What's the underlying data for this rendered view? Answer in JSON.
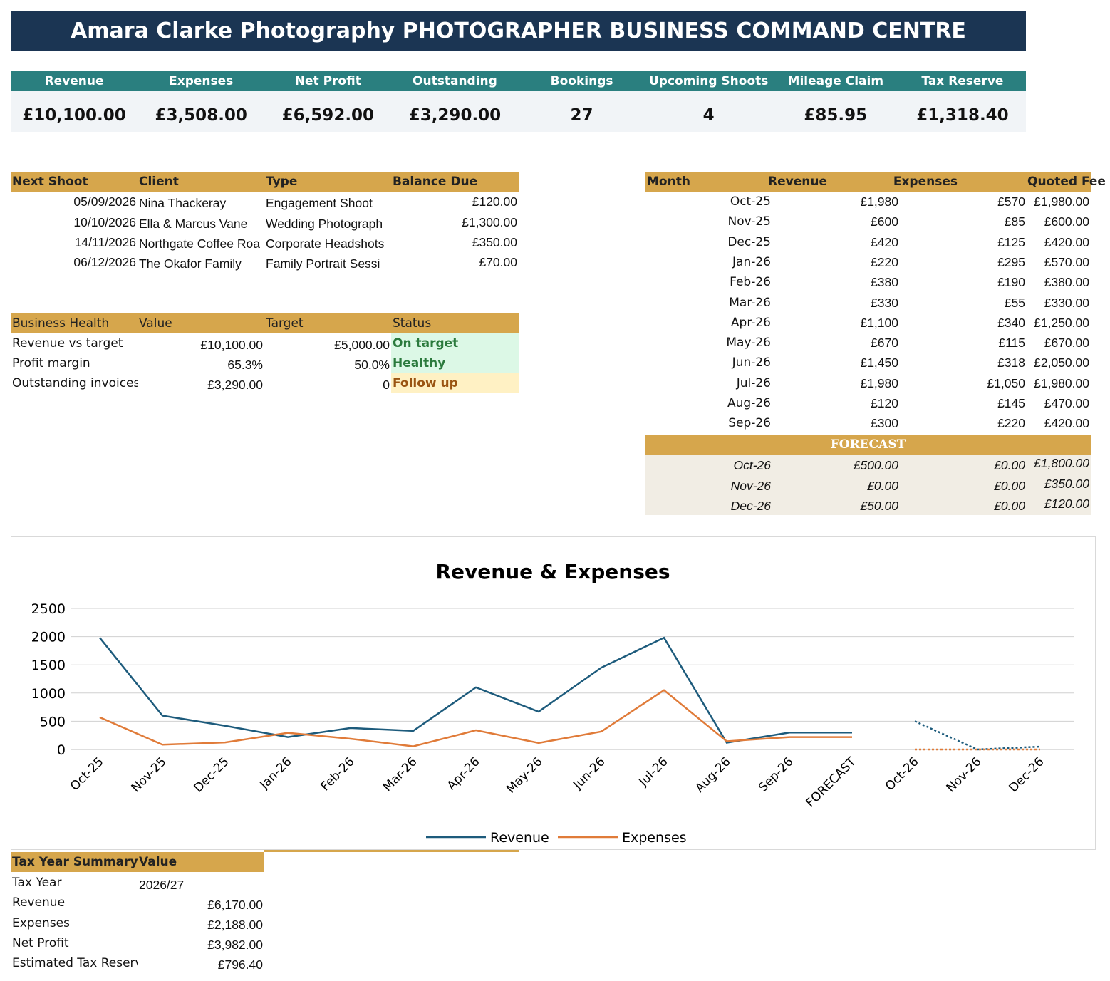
{
  "title": "Amara Clarke Photography PHOTOGRAPHER BUSINESS COMMAND CENTRE",
  "kpis": [
    {
      "label": "Revenue",
      "value": "£10,100.00"
    },
    {
      "label": "Expenses",
      "value": "£3,508.00"
    },
    {
      "label": "Net Profit",
      "value": "£6,592.00"
    },
    {
      "label": "Outstanding",
      "value": "£3,290.00"
    },
    {
      "label": "Bookings",
      "value": "27"
    },
    {
      "label": "Upcoming Shoots",
      "value": "4"
    },
    {
      "label": "Mileage Claim",
      "value": "£85.95"
    },
    {
      "label": "Tax Reserve",
      "value": "£1,318.40"
    }
  ],
  "shoots": {
    "headers": [
      "Next Shoot",
      "Client",
      "Type",
      "Balance Due"
    ],
    "rows": [
      [
        "05/09/2026",
        "Nina Thackeray",
        "Engagement Shoot",
        "£120.00"
      ],
      [
        "10/10/2026",
        "Ella & Marcus Vane",
        "Wedding Photograph",
        "£1,300.00"
      ],
      [
        "14/11/2026",
        "Northgate Coffee Roa",
        "Corporate Headshots",
        "£350.00"
      ],
      [
        "06/12/2026",
        "The Okafor Family",
        "Family Portrait Sessi",
        "£70.00"
      ]
    ]
  },
  "health": {
    "headers": [
      "Business Health",
      "Value",
      "Target",
      "Status"
    ],
    "rows": [
      {
        "metric": "Revenue vs target",
        "value": "£10,100.00",
        "target": "£5,000.00",
        "status": "On target"
      },
      {
        "metric": "Profit margin",
        "value": "65.3%",
        "target": "50.0%",
        "status": "Healthy"
      },
      {
        "metric": "Outstanding invoices",
        "value": "£3,290.00",
        "target": "0",
        "status": "Follow up"
      }
    ],
    "status_colors": {
      "good_bg": "#dcf8e6",
      "good_text": "#2b7a3d",
      "warn_bg": "#fff1c4",
      "warn_text": "#9a5412"
    }
  },
  "monthly": {
    "headers": [
      "Month",
      "Revenue",
      "Expenses",
      "Quoted Fee"
    ],
    "rows": [
      [
        "Oct-25",
        "£1,980",
        "£570",
        "£1,980.00"
      ],
      [
        "Nov-25",
        "£600",
        "£85",
        "£600.00"
      ],
      [
        "Dec-25",
        "£420",
        "£125",
        "£420.00"
      ],
      [
        "Jan-26",
        "£220",
        "£295",
        "£570.00"
      ],
      [
        "Feb-26",
        "£380",
        "£190",
        "£380.00"
      ],
      [
        "Mar-26",
        "£330",
        "£55",
        "£330.00"
      ],
      [
        "Apr-26",
        "£1,100",
        "£340",
        "£1,250.00"
      ],
      [
        "May-26",
        "£670",
        "£115",
        "£670.00"
      ],
      [
        "Jun-26",
        "£1,450",
        "£318",
        "£2,050.00"
      ],
      [
        "Jul-26",
        "£1,980",
        "£1,050",
        "£1,980.00"
      ],
      [
        "Aug-26",
        "£120",
        "£145",
        "£470.00"
      ],
      [
        "Sep-26",
        "£300",
        "£220",
        "£420.00"
      ]
    ],
    "forecast_label": "FORECAST",
    "forecast_rows": [
      [
        "Oct-26",
        "£500.00",
        "£0.00",
        "£1,800.00"
      ],
      [
        "Nov-26",
        "£0.00",
        "£0.00",
        "£350.00"
      ],
      [
        "Dec-26",
        "£50.00",
        "£0.00",
        "£120.00"
      ]
    ]
  },
  "tax": {
    "headers": [
      "Tax Year Summary",
      "Value"
    ],
    "rows": [
      [
        "Tax Year",
        "2026/27"
      ],
      [
        "Revenue",
        "£6,170.00"
      ],
      [
        "Expenses",
        "£2,188.00"
      ],
      [
        "Net Profit",
        "£3,982.00"
      ],
      [
        "Estimated Tax Reserv",
        "£796.40"
      ]
    ]
  },
  "chart_data": {
    "type": "line",
    "title": "Revenue & Expenses",
    "categories": [
      "Oct-25",
      "Nov-25",
      "Dec-25",
      "Jan-26",
      "Feb-26",
      "Mar-26",
      "Apr-26",
      "May-26",
      "Jun-26",
      "Jul-26",
      "Aug-26",
      "Sep-26",
      "FORECAST",
      "Oct-26",
      "Nov-26",
      "Dec-26"
    ],
    "series": [
      {
        "name": "Revenue",
        "color": "#1d5b7c",
        "values": [
          1980,
          600,
          420,
          220,
          380,
          330,
          1100,
          670,
          1450,
          1980,
          120,
          300,
          300,
          null,
          null,
          null
        ],
        "forecast": [
          null,
          null,
          null,
          null,
          null,
          null,
          null,
          null,
          null,
          null,
          null,
          null,
          null,
          500,
          0,
          50
        ]
      },
      {
        "name": "Expenses",
        "color": "#e07b39",
        "values": [
          570,
          85,
          125,
          295,
          190,
          55,
          340,
          115,
          318,
          1050,
          145,
          220,
          220,
          null,
          null,
          null
        ],
        "forecast": [
          null,
          null,
          null,
          null,
          null,
          null,
          null,
          null,
          null,
          null,
          null,
          null,
          null,
          0,
          0,
          0
        ]
      }
    ],
    "yticks": [
      0,
      500,
      1000,
      1500,
      2000,
      2500
    ],
    "ylim": [
      0,
      2500
    ],
    "grid": true,
    "legend": "bottom"
  }
}
